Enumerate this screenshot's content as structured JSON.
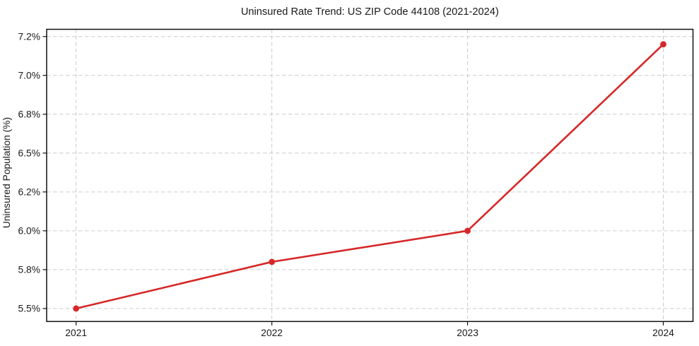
{
  "chart_data": {
    "type": "line",
    "title": "Uninsured Rate Trend: US ZIP Code 44108 (2021-2024)",
    "xlabel": "",
    "ylabel": "Uninsured Population (%)",
    "categories": [
      "2021",
      "2022",
      "2023",
      "2024"
    ],
    "values": [
      5.5,
      5.84,
      6.0,
      7.16
    ],
    "x_tick_labels": [
      "2021",
      "2022",
      "2023",
      "2024"
    ],
    "y_ticks": {
      "values": [
        5.5,
        5.8,
        6.0,
        6.2,
        6.5,
        6.8,
        7.0,
        7.2
      ],
      "labels": [
        "5.5%",
        "5.8%",
        "6.0%",
        "6.2%",
        "6.5%",
        "6.8%",
        "7.0%",
        "7.2%"
      ]
    },
    "ylim": [
      5.5,
      7.2
    ],
    "grid": true,
    "grid_style": "dashed",
    "legend": "none",
    "line_color": "#d62728",
    "marker": "circle",
    "background_color": "#ffffff"
  }
}
